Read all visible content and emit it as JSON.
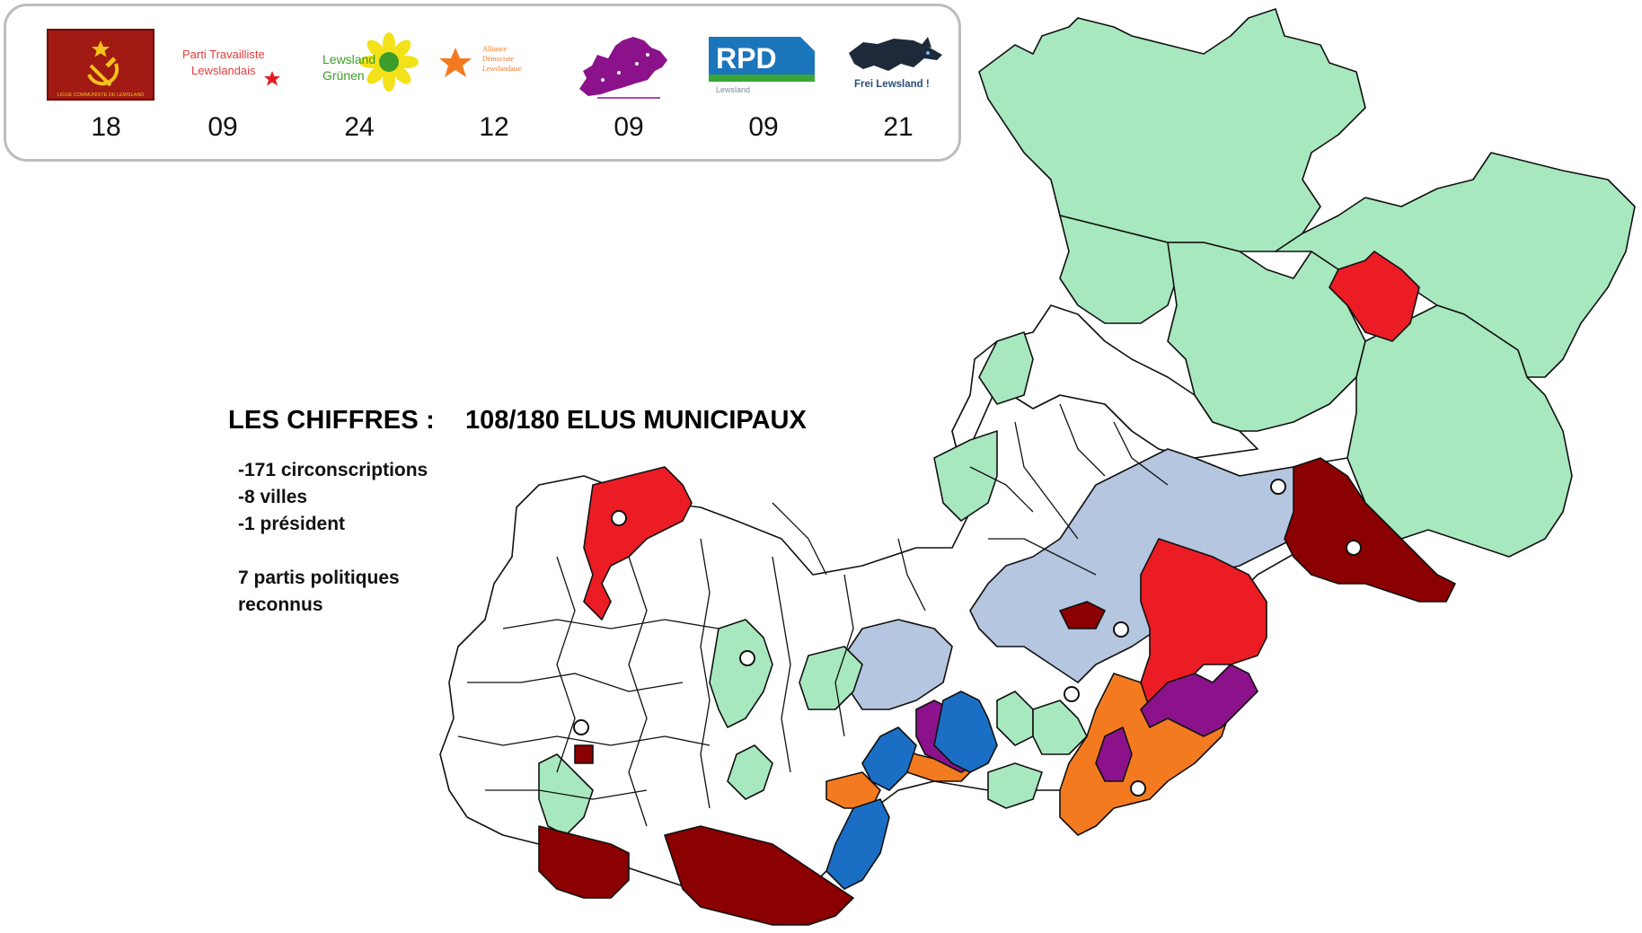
{
  "colors": {
    "communist": "#8b0000",
    "labour": "#ec1c24",
    "greens": "#a8e8bf",
    "alliance": "#f47a20",
    "purple": "#8b128b",
    "rpd": "#b5c6e0",
    "frei": "#1a6fc4",
    "none": "#ffffff"
  },
  "legend": {
    "parties": [
      {
        "key": "communist",
        "logo_text": "LIGUE COMMUNISTE DE LEWSLAND",
        "seats": "18",
        "icon": "hammer-sickle-icon"
      },
      {
        "key": "labour",
        "logo_text": "Parti Travailliste Lewslandais",
        "seats": "09",
        "icon": "red-star-icon"
      },
      {
        "key": "greens",
        "logo_text_1": "Lewsland",
        "logo_text_2": "Grünen",
        "seats": "24",
        "icon": "sunflower-icon"
      },
      {
        "key": "alliance",
        "logo_text_1": "Alliance",
        "logo_text_2": "Démocrate",
        "logo_text_3": "Lewslandaise",
        "seats": "12",
        "icon": "orange-star-icon"
      },
      {
        "key": "purple",
        "logo_text": "",
        "seats": "09",
        "icon": "purple-map-icon"
      },
      {
        "key": "rpd",
        "logo_text_1": "RPD",
        "logo_text_2": "Lewsland",
        "seats": "09",
        "icon": "rpd-flag-icon"
      },
      {
        "key": "frei",
        "logo_text": "Frei Lewsland !",
        "seats": "21",
        "icon": "wolf-icon"
      }
    ]
  },
  "stats": {
    "title": "LES CHIFFRES :",
    "elus": "108/180 ELUS MUNICIPAUX",
    "lines": [
      "-171 circonscriptions",
      "-8 villes",
      "-1 président",
      "7 partis politiques",
      "reconnus"
    ]
  }
}
